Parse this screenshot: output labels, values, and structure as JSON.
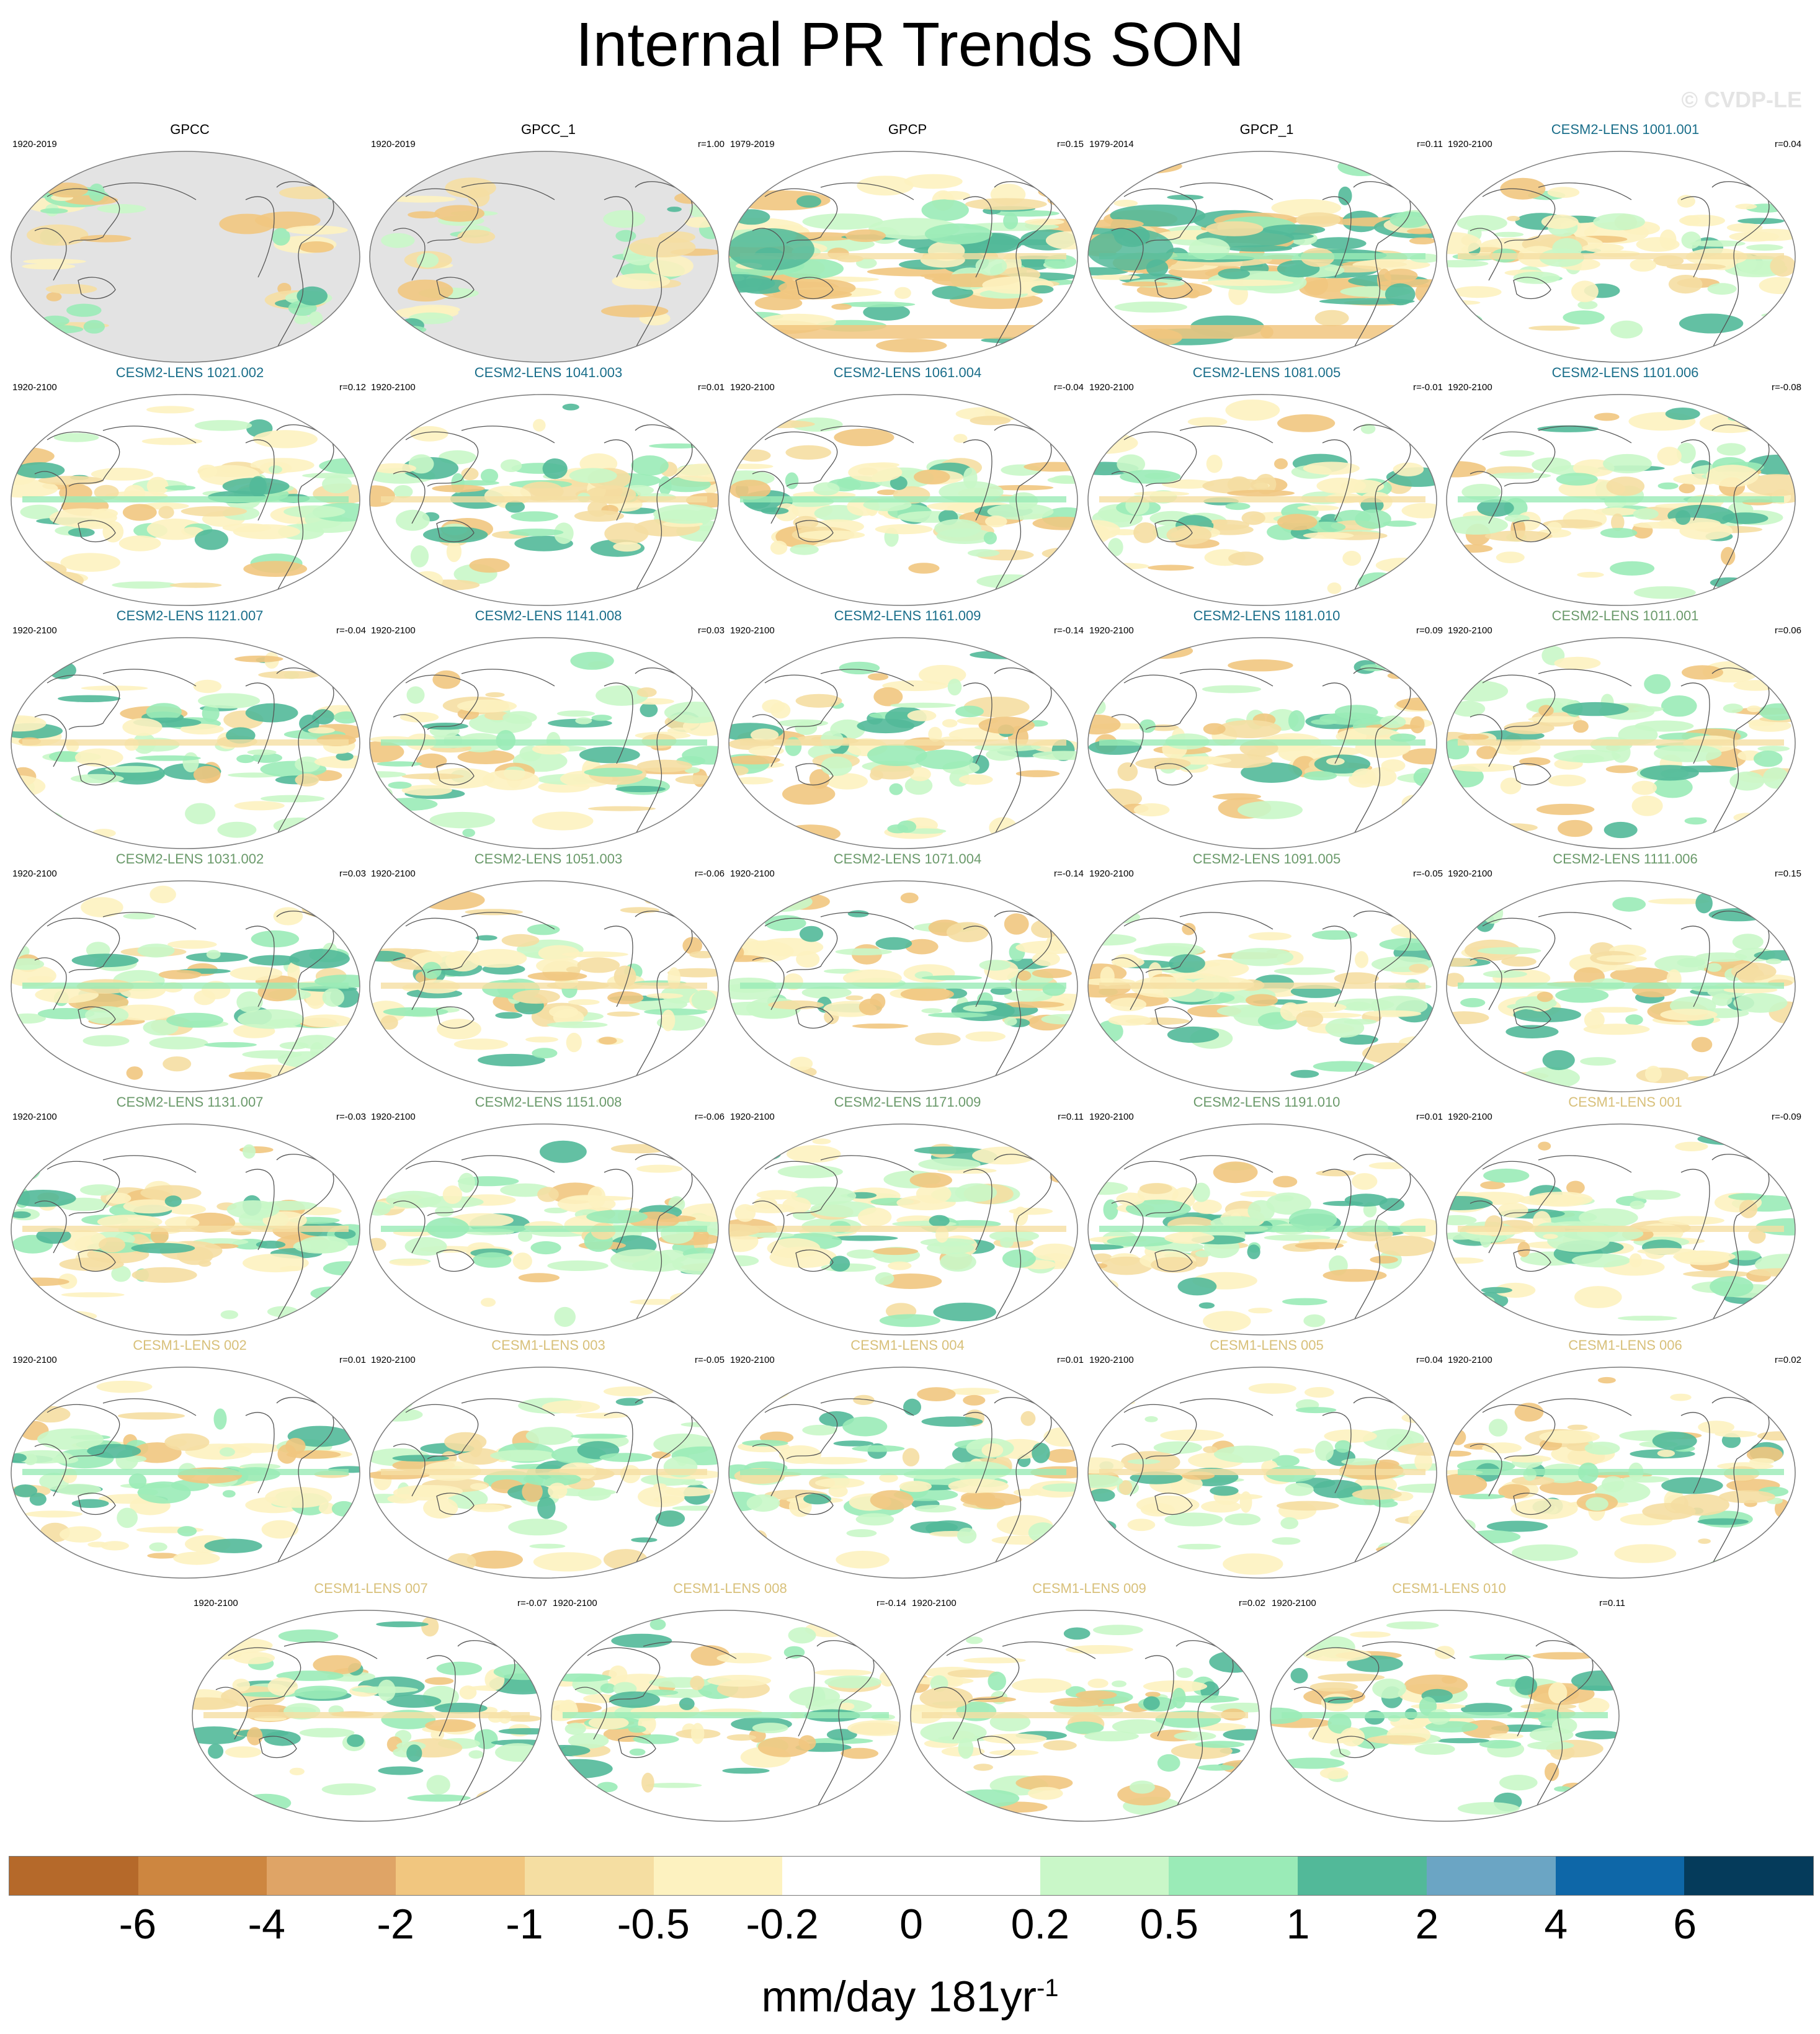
{
  "title": "Internal PR Trends SON",
  "watermark": "© CVDP-LE",
  "panels": [
    {
      "name": "GPCC",
      "years": "1920-2019",
      "r": "",
      "name_color": "#000000",
      "style": "obs-gpcc"
    },
    {
      "name": "GPCC_1",
      "years": "1920-2019",
      "r": "r=1.00",
      "name_color": "#000000",
      "style": "obs-gpcc"
    },
    {
      "name": "GPCP",
      "years": "1979-2019",
      "r": "r=0.15",
      "name_color": "#000000",
      "style": "obs-gpcp"
    },
    {
      "name": "GPCP_1",
      "years": "1979-2014",
      "r": "r=0.11",
      "name_color": "#000000",
      "style": "obs-gpcp"
    },
    {
      "name": "CESM2-LENS 1001.001",
      "years": "1920-2100",
      "r": "r=0.04",
      "name_color": "#1a6e8a",
      "style": "model"
    },
    {
      "name": "CESM2-LENS 1021.002",
      "years": "1920-2100",
      "r": "r=0.12",
      "name_color": "#1a6e8a",
      "style": "model"
    },
    {
      "name": "CESM2-LENS 1041.003",
      "years": "1920-2100",
      "r": "r=0.01",
      "name_color": "#1a6e8a",
      "style": "model"
    },
    {
      "name": "CESM2-LENS 1061.004",
      "years": "1920-2100",
      "r": "r=-0.04",
      "name_color": "#1a6e8a",
      "style": "model"
    },
    {
      "name": "CESM2-LENS 1081.005",
      "years": "1920-2100",
      "r": "r=-0.01",
      "name_color": "#1a6e8a",
      "style": "model"
    },
    {
      "name": "CESM2-LENS 1101.006",
      "years": "1920-2100",
      "r": "r=-0.08",
      "name_color": "#1a6e8a",
      "style": "model"
    },
    {
      "name": "CESM2-LENS 1121.007",
      "years": "1920-2100",
      "r": "r=-0.04",
      "name_color": "#1a6e8a",
      "style": "model"
    },
    {
      "name": "CESM2-LENS 1141.008",
      "years": "1920-2100",
      "r": "r=0.03",
      "name_color": "#1a6e8a",
      "style": "model"
    },
    {
      "name": "CESM2-LENS 1161.009",
      "years": "1920-2100",
      "r": "r=-0.14",
      "name_color": "#1a6e8a",
      "style": "model"
    },
    {
      "name": "CESM2-LENS 1181.010",
      "years": "1920-2100",
      "r": "r=0.09",
      "name_color": "#1a6e8a",
      "style": "model"
    },
    {
      "name": "CESM2-LENS 1011.001",
      "years": "1920-2100",
      "r": "r=0.06",
      "name_color": "#6b9a6b",
      "style": "model"
    },
    {
      "name": "CESM2-LENS 1031.002",
      "years": "1920-2100",
      "r": "r=0.03",
      "name_color": "#6b9a6b",
      "style": "model"
    },
    {
      "name": "CESM2-LENS 1051.003",
      "years": "1920-2100",
      "r": "r=-0.06",
      "name_color": "#6b9a6b",
      "style": "model"
    },
    {
      "name": "CESM2-LENS 1071.004",
      "years": "1920-2100",
      "r": "r=-0.14",
      "name_color": "#6b9a6b",
      "style": "model"
    },
    {
      "name": "CESM2-LENS 1091.005",
      "years": "1920-2100",
      "r": "r=-0.05",
      "name_color": "#6b9a6b",
      "style": "model"
    },
    {
      "name": "CESM2-LENS 1111.006",
      "years": "1920-2100",
      "r": "r=0.15",
      "name_color": "#6b9a6b",
      "style": "model"
    },
    {
      "name": "CESM2-LENS 1131.007",
      "years": "1920-2100",
      "r": "r=-0.03",
      "name_color": "#6b9a6b",
      "style": "model"
    },
    {
      "name": "CESM2-LENS 1151.008",
      "years": "1920-2100",
      "r": "r=-0.06",
      "name_color": "#6b9a6b",
      "style": "model"
    },
    {
      "name": "CESM2-LENS 1171.009",
      "years": "1920-2100",
      "r": "r=0.11",
      "name_color": "#6b9a6b",
      "style": "model"
    },
    {
      "name": "CESM2-LENS 1191.010",
      "years": "1920-2100",
      "r": "r=0.01",
      "name_color": "#6b9a6b",
      "style": "model"
    },
    {
      "name": "CESM1-LENS 001",
      "years": "1920-2100",
      "r": "r=-0.09",
      "name_color": "#d8c07a",
      "style": "model"
    },
    {
      "name": "CESM1-LENS 002",
      "years": "1920-2100",
      "r": "r=0.01",
      "name_color": "#d8c07a",
      "style": "model"
    },
    {
      "name": "CESM1-LENS 003",
      "years": "1920-2100",
      "r": "r=-0.05",
      "name_color": "#d8c07a",
      "style": "model"
    },
    {
      "name": "CESM1-LENS 004",
      "years": "1920-2100",
      "r": "r=0.01",
      "name_color": "#d8c07a",
      "style": "model"
    },
    {
      "name": "CESM1-LENS 005",
      "years": "1920-2100",
      "r": "r=0.04",
      "name_color": "#d8c07a",
      "style": "model"
    },
    {
      "name": "CESM1-LENS 006",
      "years": "1920-2100",
      "r": "r=0.02",
      "name_color": "#d8c07a",
      "style": "model"
    },
    {
      "name": "CESM1-LENS 007",
      "years": "1920-2100",
      "r": "r=-0.07",
      "name_color": "#d8c07a",
      "style": "model"
    },
    {
      "name": "CESM1-LENS 008",
      "years": "1920-2100",
      "r": "r=-0.14",
      "name_color": "#d8c07a",
      "style": "model"
    },
    {
      "name": "CESM1-LENS 009",
      "years": "1920-2100",
      "r": "r=0.02",
      "name_color": "#d8c07a",
      "style": "model"
    },
    {
      "name": "CESM1-LENS 010",
      "years": "1920-2100",
      "r": "r=0.11",
      "name_color": "#d8c07a",
      "style": "model"
    }
  ],
  "colorbar": {
    "colors": [
      "#b5692a",
      "#cd8640",
      "#dfa466",
      "#f1c67f",
      "#f5dea2",
      "#fdf2c0",
      "#ffffff",
      "#ffffff",
      "#c9f7c8",
      "#9aebb7",
      "#52b999",
      "#6ba5c4",
      "#0e67a8",
      "#053b5b"
    ],
    "labels": [
      "-6",
      "-4",
      "-2",
      "-1",
      "-0.5",
      "-0.2",
      "0",
      "0.2",
      "0.5",
      "1",
      "2",
      "4",
      "6"
    ]
  },
  "units": {
    "text": "mm/day 181yr",
    "exponent": "-1"
  }
}
